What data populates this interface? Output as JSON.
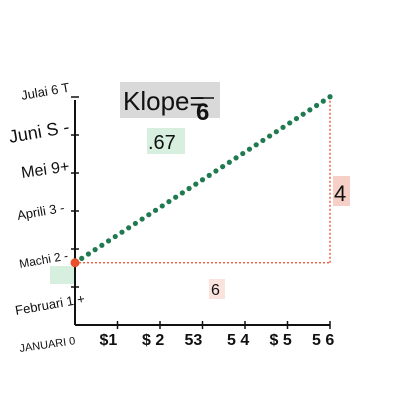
{
  "chart_data": {
    "type": "line",
    "title": "",
    "xlabel": "",
    "ylabel": "",
    "x_tick_labels": [
      "$1",
      "$ 2",
      "53",
      "5 4",
      "$ 5",
      "5 6"
    ],
    "y_tick_labels": [
      "JANUARI 0",
      "Februari 1 +",
      "Machi 2 -",
      "Aprili 3 -",
      "Mei 9+",
      "Juni S -",
      "Julai 6 T"
    ],
    "xlim": [
      0,
      6
    ],
    "ylim": [
      0,
      6
    ],
    "series": [
      {
        "x": [
          0,
          6
        ],
        "y": [
          1.5,
          5.5
        ]
      }
    ],
    "annotations": {
      "slope_label": "Klope=",
      "slope_fraction": "6",
      "slope_value": ".67",
      "rise_label": "4",
      "run_label": "6"
    },
    "colors": {
      "line": "#1f7a50",
      "start_point": "#e8502a",
      "guide": "#e84a2a"
    }
  }
}
